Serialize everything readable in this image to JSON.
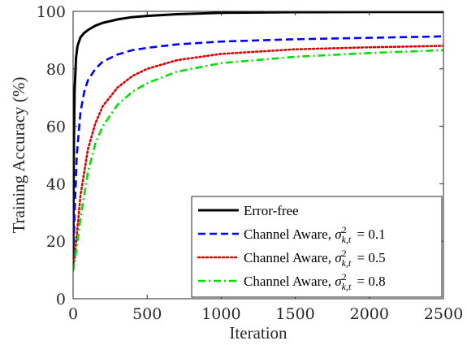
{
  "chart_data": {
    "type": "line",
    "xlabel": "Iteration",
    "ylabel": "Training Accuracy (%)",
    "xlim": [
      0,
      2500
    ],
    "ylim": [
      0,
      100
    ],
    "xticks": [
      0,
      500,
      1000,
      1500,
      2000,
      2500
    ],
    "yticks": [
      0,
      20,
      40,
      60,
      80,
      100
    ],
    "grid": false,
    "legend_position": "bottom-right",
    "series": [
      {
        "name": "Error-free",
        "legend_prefix": "",
        "legend_value": "",
        "color": "#000000",
        "dash": "solid",
        "x": [
          0,
          5,
          10,
          20,
          30,
          50,
          75,
          100,
          150,
          200,
          300,
          400,
          500,
          700,
          1000,
          1500,
          2000,
          2500
        ],
        "y": [
          10,
          52,
          72,
          84,
          88,
          91,
          92.5,
          93.5,
          95,
          96,
          97.2,
          98,
          98.4,
          99,
          99.5,
          99.7,
          99.8,
          99.8
        ]
      },
      {
        "name": "Channel Aware, σ²k,t = 0.1",
        "legend_prefix": "Channel Aware,",
        "legend_value": "= 0.1",
        "color": "#0000ff",
        "dash": "dashed",
        "x": [
          0,
          10,
          25,
          50,
          75,
          100,
          150,
          200,
          300,
          400,
          500,
          700,
          1000,
          1500,
          2000,
          2500
        ],
        "y": [
          11,
          30,
          50,
          65,
          72,
          76,
          80,
          82.5,
          85,
          86.5,
          87.3,
          88.5,
          89.5,
          90.3,
          90.8,
          91.3
        ]
      },
      {
        "name": "Channel Aware, σ²k,t = 0.5",
        "legend_prefix": "Channel Aware,",
        "legend_value": "= 0.5",
        "color": "#e00000",
        "dash": "dotted",
        "x": [
          0,
          25,
          50,
          100,
          150,
          200,
          300,
          400,
          500,
          700,
          1000,
          1500,
          2000,
          2500
        ],
        "y": [
          10,
          22,
          36,
          52,
          61,
          67,
          73.5,
          77.5,
          80,
          83,
          85.2,
          86.8,
          87.5,
          88
        ]
      },
      {
        "name": "Channel Aware, σ²k,t = 0.8",
        "legend_prefix": "Channel Aware,",
        "legend_value": "= 0.8",
        "color": "#00e000",
        "dash": "dashdot",
        "x": [
          0,
          25,
          50,
          100,
          150,
          200,
          300,
          400,
          500,
          700,
          1000,
          1500,
          2000,
          2500
        ],
        "y": [
          9.5,
          18,
          28,
          44,
          54,
          60,
          67.5,
          72,
          75,
          79,
          82,
          84.2,
          85.5,
          86.5
        ]
      }
    ]
  }
}
